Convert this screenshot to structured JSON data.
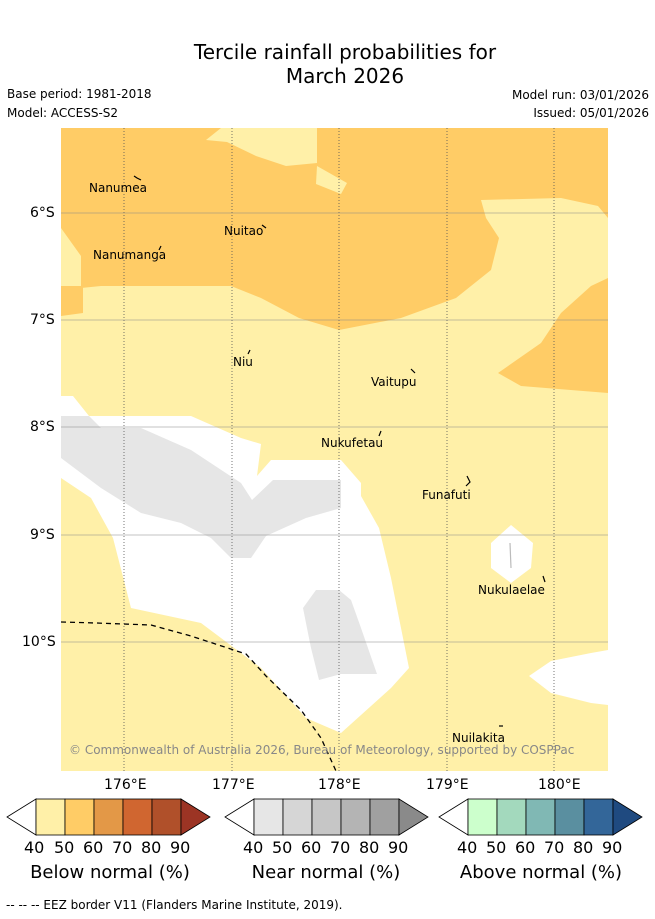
{
  "title_line1": "Tercile rainfall probabilities for",
  "title_line2": "March 2026",
  "base_period": "Base period: 1981-2018",
  "model": "Model: ACCESS-S2",
  "model_run": "Model run: 03/01/2026",
  "issued": "Issued: 05/01/2026",
  "copyright": "© Commonwealth of Australia 2026, Bureau of Meteorology, supported by COSPPac",
  "lat_labels": [
    "6°S",
    "7°S",
    "8°S",
    "9°S",
    "10°S"
  ],
  "lon_labels": [
    "176°E",
    "177°E",
    "178°E",
    "179°E",
    "180°E"
  ],
  "islands": [
    "Nanumea",
    "Nuitao",
    "Nanumanga",
    "Niu",
    "Vaitupu",
    "Nukufetau",
    "Funafuti",
    "Nukulaelae",
    "Nuilakita"
  ],
  "colorbars": {
    "below": {
      "title": "Below normal (%)",
      "ticks": [
        "40",
        "50",
        "60",
        "70",
        "80",
        "90"
      ],
      "colors": [
        "#ffffff",
        "#fff0a8",
        "#ffcc66",
        "#e39847",
        "#d06630",
        "#b0502a",
        "#9c3424"
      ]
    },
    "near": {
      "title": "Near normal (%)",
      "ticks": [
        "40",
        "50",
        "60",
        "70",
        "80",
        "90"
      ],
      "colors": [
        "#ffffff",
        "#e6e6e6",
        "#d6d6d6",
        "#c6c6c6",
        "#b4b4b4",
        "#a0a0a0",
        "#8a8a8a"
      ]
    },
    "above": {
      "title": "Above normal (%)",
      "ticks": [
        "40",
        "50",
        "60",
        "70",
        "80",
        "90"
      ],
      "colors": [
        "#ffffff",
        "#ccffcc",
        "#a3d9bd",
        "#80b8b4",
        "#5a8fa0",
        "#336699",
        "#1f4a80"
      ]
    }
  },
  "footer": "--  --  -- EEZ border V11 (Flanders Marine Institute, 2019)."
}
